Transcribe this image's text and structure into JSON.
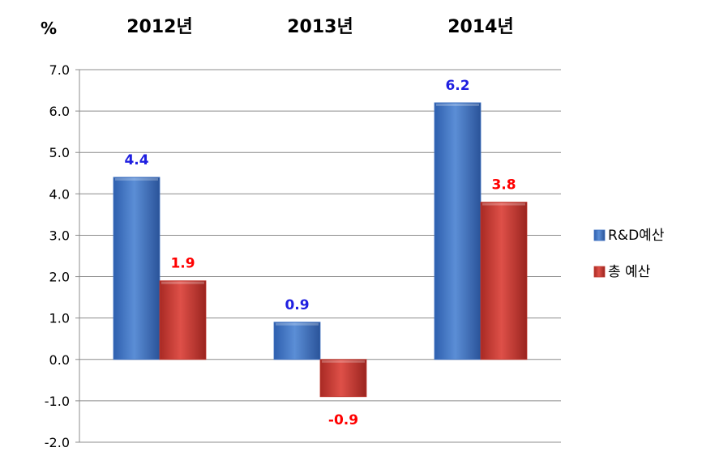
{
  "chart_data": {
    "type": "bar",
    "unit_label": "%",
    "categories": [
      "2012년",
      "2013년",
      "2014년"
    ],
    "series": [
      {
        "name": "R&D예산",
        "values": [
          4.4,
          0.9,
          6.2
        ],
        "labels": [
          "4.4",
          "0.9",
          "6.2"
        ],
        "color": "#3E70C0",
        "label_color": "#1F1FE0"
      },
      {
        "name": "총  예산",
        "values": [
          1.9,
          -0.9,
          3.8
        ],
        "labels": [
          "1.9",
          "-0.9",
          "3.8"
        ],
        "color": "#C0382F",
        "label_color": "#FF0000"
      }
    ],
    "ylim": [
      -2.0,
      7.0
    ],
    "yticks": [
      "7.0",
      "6.0",
      "5.0",
      "4.0",
      "3.0",
      "2.0",
      "1.0",
      "0.0",
      "-1.0",
      "-2.0"
    ],
    "grid": true,
    "legend_position": "right"
  }
}
